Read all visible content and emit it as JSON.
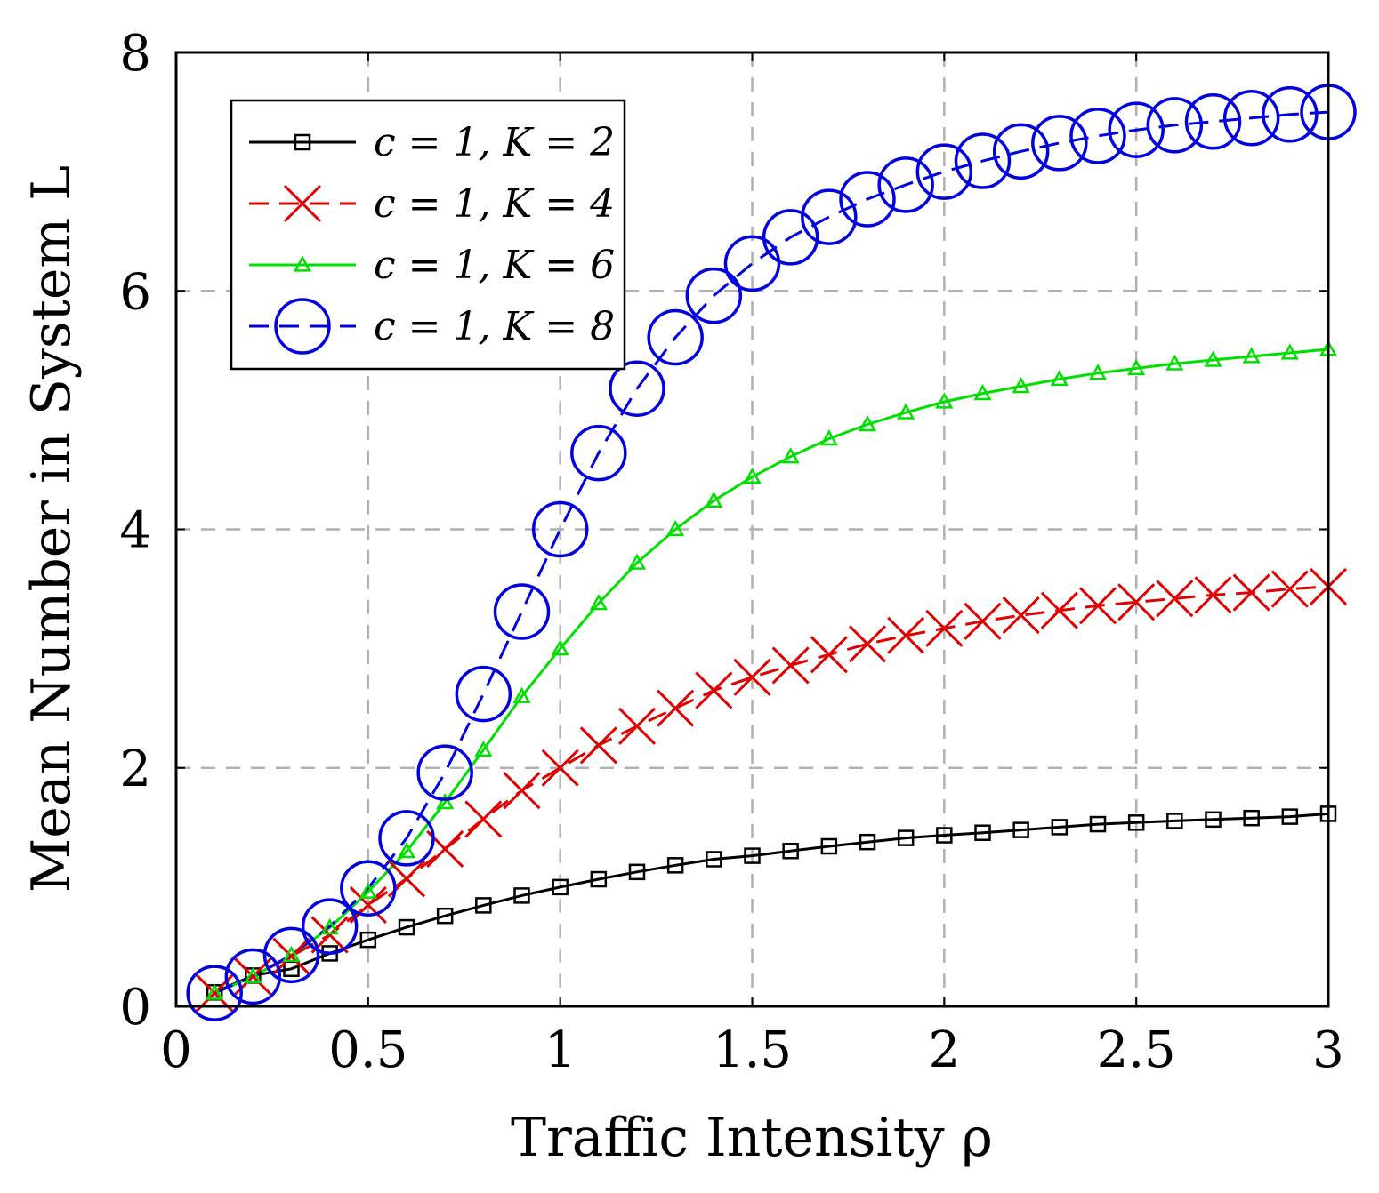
{
  "chart_data": {
    "type": "line",
    "title": "",
    "xlabel": "Traffic Intensity ρ",
    "ylabel": "Mean Number in System L",
    "xlim": [
      0,
      3
    ],
    "ylim": [
      0,
      8
    ],
    "xticks": [
      0,
      0.5,
      1,
      1.5,
      2,
      2.5,
      3
    ],
    "xtick_labels": [
      "0",
      "0.5",
      "1",
      "1.5",
      "2",
      "2.5",
      "3"
    ],
    "yticks": [
      0,
      2,
      4,
      6,
      8
    ],
    "ytick_labels": [
      "0",
      "2",
      "4",
      "6",
      "8"
    ],
    "grid": true,
    "legend_position": "top-left",
    "x": [
      0.1,
      0.2,
      0.3,
      0.4,
      0.5,
      0.6,
      0.7,
      0.8,
      0.9,
      1.0,
      1.1,
      1.2,
      1.3,
      1.4,
      1.5,
      1.6,
      1.7,
      1.8,
      1.9,
      2.0,
      2.1,
      2.2,
      2.3,
      2.4,
      2.5,
      2.6,
      2.7,
      2.8,
      2.9,
      3.0
    ],
    "series": [
      {
        "name": "c = 1, K = 2",
        "color": "#000000",
        "marker": "square",
        "dash": "solid",
        "values": [
          0.117,
          0.258,
          0.315,
          0.444,
          0.558,
          0.663,
          0.759,
          0.847,
          0.929,
          1.0,
          1.066,
          1.127,
          1.183,
          1.234,
          1.263,
          1.303,
          1.342,
          1.378,
          1.412,
          1.435,
          1.456,
          1.479,
          1.503,
          1.528,
          1.541,
          1.555,
          1.567,
          1.579,
          1.591,
          1.615
        ]
      },
      {
        "name": "c = 1, K = 4",
        "color": "#e00000",
        "marker": "x",
        "dash": "dashed",
        "values": [
          0.111,
          0.25,
          0.42,
          0.6,
          0.85,
          1.07,
          1.32,
          1.57,
          1.81,
          2.0,
          2.19,
          2.35,
          2.5,
          2.65,
          2.76,
          2.86,
          2.95,
          3.04,
          3.11,
          3.17,
          3.23,
          3.28,
          3.32,
          3.36,
          3.39,
          3.42,
          3.45,
          3.47,
          3.5,
          3.52
        ]
      },
      {
        "name": "c = 1, K = 6",
        "color": "#00e000",
        "marker": "triangle",
        "dash": "solid",
        "values": [
          0.111,
          0.25,
          0.43,
          0.66,
          0.96,
          1.3,
          1.71,
          2.15,
          2.6,
          3.0,
          3.38,
          3.72,
          4.0,
          4.24,
          4.44,
          4.61,
          4.76,
          4.88,
          4.98,
          5.07,
          5.14,
          5.2,
          5.26,
          5.31,
          5.35,
          5.39,
          5.42,
          5.45,
          5.48,
          5.51
        ]
      },
      {
        "name": "c = 1, K = 8",
        "color": "#0000e0",
        "marker": "circle",
        "dash": "dashed",
        "values": [
          0.111,
          0.25,
          0.43,
          0.67,
          0.99,
          1.41,
          1.96,
          2.62,
          3.31,
          4.0,
          4.64,
          5.18,
          5.61,
          5.96,
          6.23,
          6.45,
          6.62,
          6.77,
          6.89,
          7.0,
          7.09,
          7.17,
          7.24,
          7.3,
          7.35,
          7.39,
          7.42,
          7.45,
          7.48,
          7.5
        ]
      }
    ]
  }
}
